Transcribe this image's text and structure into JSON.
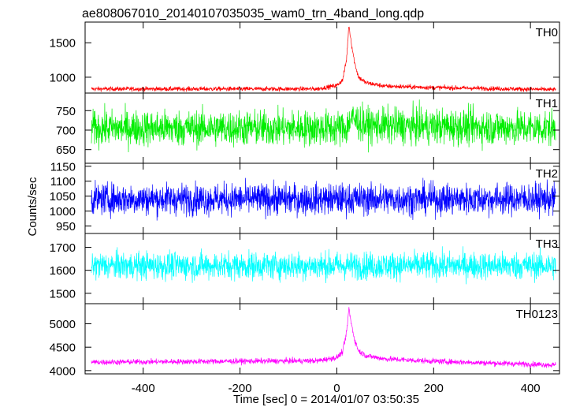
{
  "title": "ae808067010_20140107035035_wam0_trn_4band_long.qdp",
  "ylabel": "Counts/sec",
  "xlabel": "Time [sec] 0 = 2014/01/07 03:50:35",
  "x_ticks": [
    -400,
    -200,
    0,
    200,
    400
  ],
  "chart_data": {
    "type": "line",
    "title": "ae808067010_20140107035035_wam0_trn_4band_long.qdp",
    "xlabel": "Time [sec] 0 = 2014/01/07 03:50:35",
    "ylabel": "Counts/sec",
    "xlim": [
      -520,
      460
    ],
    "x_start": -507,
    "x_end": 452,
    "x_ticks": [
      -400,
      -200,
      0,
      200,
      400
    ],
    "panels": [
      {
        "name": "TH0",
        "color": "#ff0000",
        "ylim": [
          770,
          1800
        ],
        "y_ticks": [
          1000,
          1500
        ],
        "baseline": 830,
        "noise": 30,
        "burst": [
          {
            "t": -507,
            "v": 830
          },
          {
            "t": -40,
            "v": 830
          },
          {
            "t": 0,
            "v": 880
          },
          {
            "t": 12,
            "v": 960
          },
          {
            "t": 20,
            "v": 1250
          },
          {
            "t": 25,
            "v": 1760
          },
          {
            "t": 30,
            "v": 1500
          },
          {
            "t": 37,
            "v": 1200
          },
          {
            "t": 45,
            "v": 1000
          },
          {
            "t": 60,
            "v": 920
          },
          {
            "t": 100,
            "v": 870
          },
          {
            "t": 200,
            "v": 850
          },
          {
            "t": 452,
            "v": 820
          }
        ]
      },
      {
        "name": "TH1",
        "color": "#00ee00",
        "ylim": [
          615,
          795
        ],
        "y_ticks": [
          650,
          700,
          750
        ],
        "baseline": 705,
        "noise": 42,
        "burst": [
          {
            "t": -507,
            "v": 705
          },
          {
            "t": 20,
            "v": 705
          },
          {
            "t": 30,
            "v": 730
          },
          {
            "t": 60,
            "v": 712
          },
          {
            "t": 452,
            "v": 705
          }
        ]
      },
      {
        "name": "TH2",
        "color": "#0000ff",
        "ylim": [
          925,
          1160
        ],
        "y_ticks": [
          950,
          1000,
          1050,
          1100,
          1150
        ],
        "baseline": 1040,
        "noise": 48,
        "burst": [
          {
            "t": -507,
            "v": 1040
          },
          {
            "t": 452,
            "v": 1040
          }
        ]
      },
      {
        "name": "TH3",
        "color": "#00ffff",
        "ylim": [
          1455,
          1760
        ],
        "y_ticks": [
          1500,
          1600,
          1700
        ],
        "baseline": 1620,
        "noise": 55,
        "burst": [
          {
            "t": -507,
            "v": 1620
          },
          {
            "t": 452,
            "v": 1620
          }
        ]
      },
      {
        "name": "TH0123",
        "color": "#ff00ff",
        "ylim": [
          3930,
          5430
        ],
        "y_ticks": [
          4000,
          4500,
          5000
        ],
        "baseline": 4200,
        "noise": 55,
        "burst": [
          {
            "t": -507,
            "v": 4180
          },
          {
            "t": -40,
            "v": 4210
          },
          {
            "t": 0,
            "v": 4280
          },
          {
            "t": 12,
            "v": 4400
          },
          {
            "t": 20,
            "v": 4800
          },
          {
            "t": 25,
            "v": 5330
          },
          {
            "t": 30,
            "v": 5000
          },
          {
            "t": 37,
            "v": 4650
          },
          {
            "t": 45,
            "v": 4420
          },
          {
            "t": 60,
            "v": 4320
          },
          {
            "t": 100,
            "v": 4250
          },
          {
            "t": 200,
            "v": 4200
          },
          {
            "t": 452,
            "v": 4120
          }
        ]
      }
    ]
  }
}
